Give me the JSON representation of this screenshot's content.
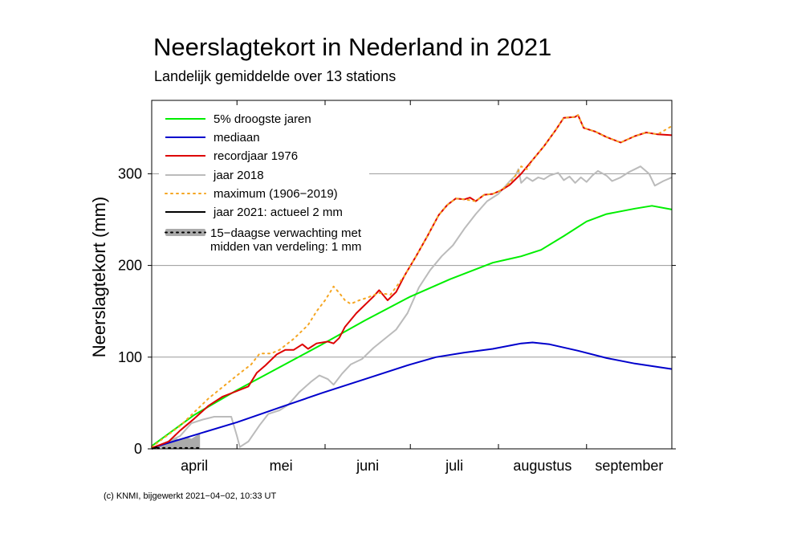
{
  "chart_data": {
    "type": "line",
    "title": "Neerslagtekort in Nederland in 2021",
    "subtitle": "Landelijk gemiddelde over 13 stations",
    "ylabel": "Neerslagtekort (mm)",
    "xlabel": "",
    "ylim": [
      0,
      380
    ],
    "yticks": [
      0,
      100,
      200,
      300
    ],
    "xlim": [
      0,
      183
    ],
    "month_labels": [
      "april",
      "mei",
      "juni",
      "juli",
      "augustus",
      "september"
    ],
    "month_label_days": [
      15,
      45.5,
      76,
      106.5,
      137.5,
      168
    ],
    "month_boundaries": [
      30,
      61,
      91,
      122,
      153
    ],
    "grid": true,
    "legend_position": "top-left",
    "series": [
      {
        "name": "5% droogste jaren",
        "color": "#00ee00",
        "style": "solid",
        "points": [
          [
            0,
            3
          ],
          [
            15,
            37
          ],
          [
            30,
            64
          ],
          [
            45,
            89
          ],
          [
            60,
            114
          ],
          [
            75,
            140
          ],
          [
            91,
            166
          ],
          [
            105,
            185
          ],
          [
            120,
            203
          ],
          [
            130,
            210
          ],
          [
            137,
            217
          ],
          [
            145,
            232
          ],
          [
            153,
            248
          ],
          [
            160,
            256
          ],
          [
            170,
            262
          ],
          [
            176,
            265
          ],
          [
            183,
            261
          ]
        ]
      },
      {
        "name": "mediaan",
        "color": "#0000cc",
        "style": "solid",
        "points": [
          [
            0,
            1
          ],
          [
            15,
            15
          ],
          [
            30,
            29
          ],
          [
            45,
            45
          ],
          [
            60,
            61
          ],
          [
            75,
            76
          ],
          [
            91,
            92
          ],
          [
            100,
            100
          ],
          [
            110,
            105
          ],
          [
            120,
            109
          ],
          [
            130,
            115
          ],
          [
            134,
            116
          ],
          [
            140,
            114
          ],
          [
            150,
            107
          ],
          [
            160,
            99
          ],
          [
            170,
            93
          ],
          [
            183,
            87
          ]
        ]
      },
      {
        "name": "recordjaar 1976",
        "color": "#dd0000",
        "style": "solid",
        "points": [
          [
            0,
            1
          ],
          [
            6,
            8
          ],
          [
            10,
            20
          ],
          [
            15,
            33
          ],
          [
            20,
            47
          ],
          [
            25,
            57
          ],
          [
            30,
            63
          ],
          [
            34,
            68
          ],
          [
            37,
            83
          ],
          [
            40,
            91
          ],
          [
            44,
            103
          ],
          [
            47,
            108
          ],
          [
            50,
            108
          ],
          [
            53,
            114
          ],
          [
            55,
            109
          ],
          [
            58,
            115
          ],
          [
            62,
            117
          ],
          [
            64,
            115
          ],
          [
            66,
            121
          ],
          [
            68,
            133
          ],
          [
            72,
            148
          ],
          [
            76,
            160
          ],
          [
            78,
            166
          ],
          [
            80,
            173
          ],
          [
            83,
            162
          ],
          [
            86,
            171
          ],
          [
            89,
            189
          ],
          [
            93,
            210
          ],
          [
            97,
            232
          ],
          [
            101,
            255
          ],
          [
            104,
            266
          ],
          [
            107,
            273
          ],
          [
            110,
            272
          ],
          [
            112,
            274
          ],
          [
            114,
            270
          ],
          [
            117,
            277
          ],
          [
            120,
            278
          ],
          [
            123,
            282
          ],
          [
            126,
            288
          ],
          [
            130,
            300
          ],
          [
            134,
            315
          ],
          [
            138,
            330
          ],
          [
            142,
            347
          ],
          [
            145,
            361
          ],
          [
            149,
            362
          ],
          [
            150,
            364
          ],
          [
            152,
            350
          ],
          [
            156,
            346
          ],
          [
            160,
            340
          ],
          [
            165,
            334
          ],
          [
            170,
            341
          ],
          [
            174,
            345
          ],
          [
            178,
            343
          ],
          [
            183,
            342
          ]
        ]
      },
      {
        "name": "jaar 2018",
        "color": "#bbbbbb",
        "style": "solid",
        "points": [
          [
            0,
            0
          ],
          [
            10,
            14
          ],
          [
            14,
            28
          ],
          [
            18,
            32
          ],
          [
            22,
            35
          ],
          [
            28,
            35
          ],
          [
            30,
            14
          ],
          [
            31,
            2
          ],
          [
            34,
            8
          ],
          [
            38,
            26
          ],
          [
            41,
            38
          ],
          [
            45,
            42
          ],
          [
            48,
            48
          ],
          [
            52,
            62
          ],
          [
            56,
            73
          ],
          [
            59,
            80
          ],
          [
            62,
            76
          ],
          [
            64,
            70
          ],
          [
            67,
            82
          ],
          [
            70,
            92
          ],
          [
            74,
            98
          ],
          [
            78,
            110
          ],
          [
            82,
            120
          ],
          [
            86,
            130
          ],
          [
            90,
            148
          ],
          [
            94,
            176
          ],
          [
            98,
            195
          ],
          [
            102,
            210
          ],
          [
            106,
            222
          ],
          [
            110,
            240
          ],
          [
            114,
            256
          ],
          [
            118,
            270
          ],
          [
            122,
            278
          ],
          [
            126,
            292
          ],
          [
            128,
            298
          ],
          [
            129,
            305
          ],
          [
            130,
            290
          ],
          [
            132,
            296
          ],
          [
            134,
            292
          ],
          [
            136,
            296
          ],
          [
            138,
            294
          ],
          [
            140,
            298
          ],
          [
            143,
            301
          ],
          [
            145,
            293
          ],
          [
            147,
            297
          ],
          [
            149,
            290
          ],
          [
            151,
            296
          ],
          [
            153,
            291
          ],
          [
            155,
            298
          ],
          [
            157,
            303
          ],
          [
            160,
            298
          ],
          [
            162,
            292
          ],
          [
            165,
            296
          ],
          [
            168,
            302
          ],
          [
            170,
            305
          ],
          [
            172,
            308
          ],
          [
            175,
            300
          ],
          [
            177,
            287
          ],
          [
            180,
            292
          ],
          [
            183,
            296
          ]
        ]
      },
      {
        "name": "maximum (1906−2019)",
        "color": "#f5a623",
        "style": "dotted",
        "points": [
          [
            0,
            2
          ],
          [
            10,
            25
          ],
          [
            20,
            55
          ],
          [
            30,
            80
          ],
          [
            35,
            92
          ],
          [
            38,
            104
          ],
          [
            42,
            104
          ],
          [
            45,
            108
          ],
          [
            50,
            120
          ],
          [
            55,
            135
          ],
          [
            58,
            150
          ],
          [
            61,
            162
          ],
          [
            63,
            172
          ],
          [
            64,
            177
          ],
          [
            66,
            170
          ],
          [
            68,
            162
          ],
          [
            70,
            158
          ],
          [
            73,
            162
          ],
          [
            76,
            165
          ],
          [
            80,
            170
          ],
          [
            84,
            168
          ],
          [
            89,
            189
          ],
          [
            93,
            210
          ],
          [
            97,
            232
          ],
          [
            101,
            255
          ],
          [
            104,
            266
          ],
          [
            107,
            273
          ],
          [
            110,
            272
          ],
          [
            114,
            270
          ],
          [
            117,
            277
          ],
          [
            120,
            278
          ],
          [
            123,
            282
          ],
          [
            126,
            290
          ],
          [
            128,
            298
          ],
          [
            130,
            308
          ],
          [
            132,
            305
          ],
          [
            134,
            315
          ],
          [
            138,
            330
          ],
          [
            142,
            347
          ],
          [
            145,
            361
          ],
          [
            149,
            362
          ],
          [
            150,
            364
          ],
          [
            152,
            350
          ],
          [
            156,
            346
          ],
          [
            160,
            340
          ],
          [
            165,
            334
          ],
          [
            170,
            341
          ],
          [
            174,
            345
          ],
          [
            178,
            343
          ],
          [
            183,
            352
          ]
        ]
      },
      {
        "name": "jaar 2021: actueel 2 mm",
        "color": "#000000",
        "style": "solid",
        "points": [
          [
            0,
            0
          ],
          [
            1,
            1
          ],
          [
            2,
            2
          ]
        ]
      }
    ],
    "forecast": {
      "name": "15−daagse verwachting met",
      "name_line2": "midden van verdeling: 1 mm",
      "band_color": "#aaaaaa",
      "median_color": "#000000",
      "lower": [
        [
          2,
          2
        ],
        [
          5,
          0
        ],
        [
          8,
          0
        ],
        [
          11,
          0
        ],
        [
          14,
          0
        ],
        [
          17,
          0
        ]
      ],
      "upper": [
        [
          2,
          2
        ],
        [
          4,
          6
        ],
        [
          6,
          9
        ],
        [
          8,
          12
        ],
        [
          10,
          10
        ],
        [
          12,
          13
        ],
        [
          14,
          11
        ],
        [
          16,
          15
        ],
        [
          17,
          18
        ]
      ],
      "median": [
        [
          2,
          1
        ],
        [
          5,
          1
        ],
        [
          8,
          1
        ],
        [
          11,
          1
        ],
        [
          14,
          1
        ],
        [
          17,
          1
        ]
      ]
    },
    "legend_entries": [
      "5% droogste jaren",
      "mediaan",
      "recordjaar 1976",
      "jaar 2018",
      "maximum (1906−2019)",
      "jaar 2021: actueel 2 mm"
    ]
  },
  "credit": "(c) KNMI, bijgewerkt 2021−04−02, 10:33 UT"
}
